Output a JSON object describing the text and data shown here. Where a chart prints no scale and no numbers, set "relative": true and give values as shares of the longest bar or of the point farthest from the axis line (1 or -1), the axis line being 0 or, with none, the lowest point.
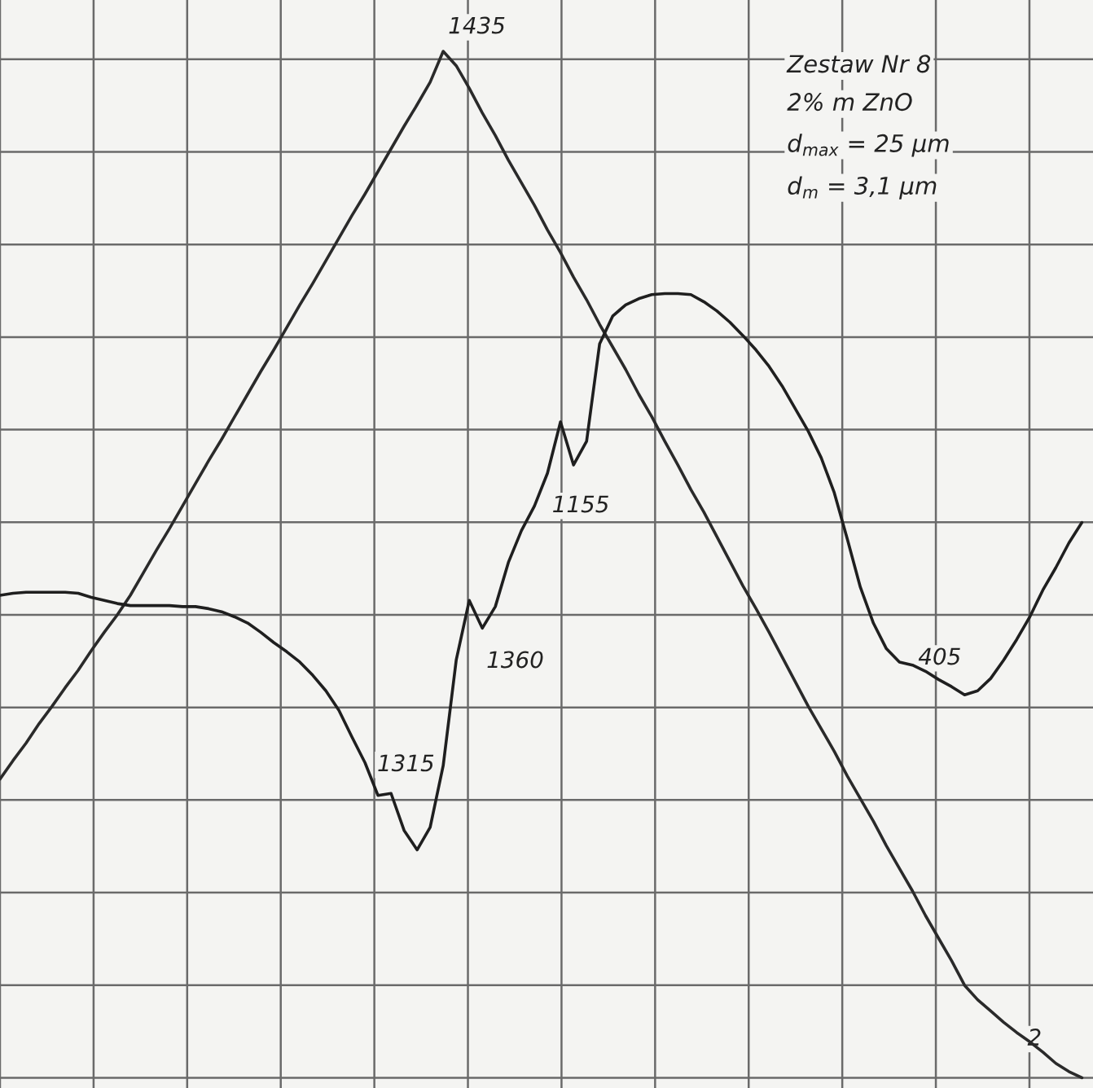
{
  "chart_data": {
    "type": "line",
    "relative": true,
    "grid": true,
    "marker": "none",
    "line_style": "solid",
    "categories": [
      null,
      null,
      null,
      null,
      null,
      null,
      null,
      null,
      null,
      null,
      null,
      null,
      null,
      null,
      null,
      null,
      null,
      null,
      null,
      null,
      null,
      null,
      null,
      null,
      null,
      null,
      null,
      null,
      null,
      null,
      null,
      null,
      null,
      null,
      null,
      null,
      null,
      null,
      null,
      null,
      null,
      null,
      null,
      null,
      null,
      null,
      null,
      null,
      null,
      null,
      null,
      null,
      null,
      null,
      null,
      null,
      null,
      null,
      null,
      null,
      null,
      null,
      null,
      null,
      null,
      null,
      null,
      null,
      null,
      null,
      null,
      null,
      null,
      null,
      null,
      null,
      null,
      null,
      null,
      null,
      null,
      null,
      null,
      null
    ],
    "series": [
      {
        "color": "#2a2a2a",
        "values": [
          0.291,
          0.309,
          0.326,
          0.345,
          0.362,
          0.38,
          0.397,
          0.416,
          0.434,
          0.451,
          0.47,
          0.492,
          0.514,
          0.535,
          0.557,
          0.579,
          0.601,
          0.622,
          0.644,
          0.666,
          0.688,
          0.709,
          0.731,
          0.753,
          0.774,
          0.796,
          0.818,
          0.84,
          0.861,
          0.883,
          0.905,
          0.927,
          0.948,
          0.97,
          1.0,
          0.986,
          0.964,
          0.94,
          0.918,
          0.894,
          0.872,
          0.85,
          0.826,
          0.804,
          0.78,
          0.758,
          0.734,
          0.712,
          0.69,
          0.666,
          0.644,
          0.62,
          0.597,
          0.573,
          0.551,
          0.527,
          0.503,
          0.479,
          0.457,
          0.434,
          0.41,
          0.386,
          0.362,
          0.34,
          0.318,
          0.294,
          0.272,
          0.25,
          0.226,
          0.204,
          0.182,
          0.158,
          0.136,
          0.114,
          0.09,
          0.076,
          0.065,
          0.054,
          0.044,
          0.035,
          0.025,
          0.014,
          0.006,
          0
        ]
      },
      {
        "color": "#1f1f1f",
        "values": [
          0.47,
          0.472,
          0.473,
          0.473,
          0.473,
          0.473,
          0.472,
          0.468,
          0.465,
          0.462,
          0.46,
          0.46,
          0.46,
          0.46,
          0.459,
          0.459,
          0.457,
          0.454,
          0.449,
          0.443,
          0.434,
          0.424,
          0.415,
          0.405,
          0.392,
          0.377,
          0.358,
          0.332,
          0.307,
          0.275,
          0.277,
          0.241,
          0.222,
          0.244,
          0.304,
          0.407,
          0.465,
          0.438,
          0.459,
          0.502,
          0.533,
          0.557,
          0.589,
          0.639,
          0.597,
          0.62,
          0.715,
          0.742,
          0.753,
          0.759,
          0.763,
          0.764,
          0.764,
          0.763,
          0.756,
          0.747,
          0.736,
          0.723,
          0.709,
          0.693,
          0.674,
          0.652,
          0.63,
          0.604,
          0.57,
          0.525,
          0.478,
          0.443,
          0.418,
          0.405,
          0.402,
          0.396,
          0.388,
          0.381,
          0.373,
          0.377,
          0.389,
          0.407,
          0.427,
          0.449,
          0.475,
          0.497,
          0.521,
          0.541
        ]
      }
    ],
    "annotations": [
      "1435",
      "1155",
      "1360",
      "1315",
      "405",
      "2",
      "Zestaw Nr 8",
      "2% m ZnO",
      "d$_{max}$ = 25 μm",
      "d$_{m}$ = 3,1 μm"
    ]
  }
}
